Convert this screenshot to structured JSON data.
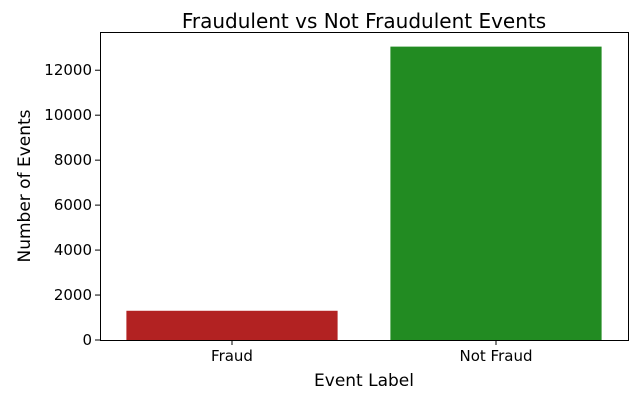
{
  "chart_data": {
    "type": "bar",
    "title": "Fraudulent vs Not Fraudulent Events",
    "xlabel": "Event Label",
    "ylabel": "Number of Events",
    "categories": [
      "Fraud",
      "Not Fraud"
    ],
    "values": [
      1300,
      13050
    ],
    "colors": [
      "#b22222",
      "#228b22"
    ],
    "ylim": [
      0,
      13700
    ],
    "yticks": [
      0,
      2000,
      4000,
      6000,
      8000,
      10000,
      12000
    ],
    "grid": false,
    "legend": "none"
  }
}
